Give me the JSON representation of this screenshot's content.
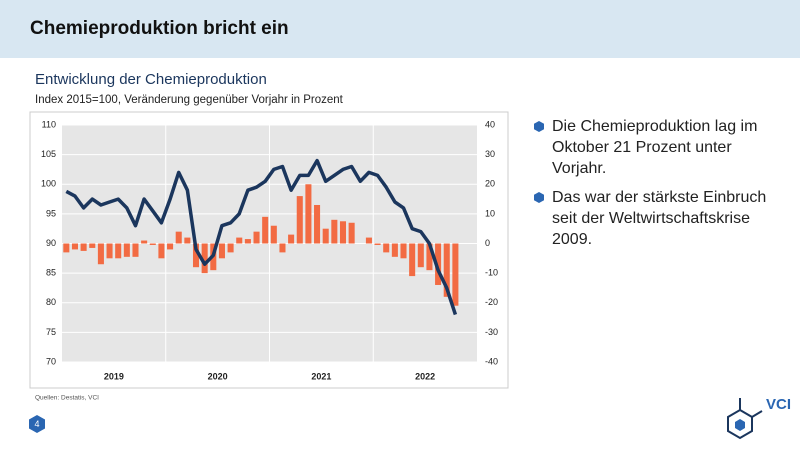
{
  "slide": {
    "title": "Chemieproduktion bricht ein",
    "bullets": [
      "Die Chemieproduktion lag im Oktober 21 Prozent unter Vorjahr.",
      "Das war der stärkste Einbruch seit der Weltwirtschaftskrise 2009."
    ],
    "source": "Quellen: Destatis, VCI",
    "page_number": "4",
    "logo": "VCI"
  },
  "chart_data": {
    "type": "bar-line",
    "title": "Entwicklung der Chemieproduktion",
    "subtitle": "Index 2015=100, Veränderung gegenüber Vorjahr in Prozent",
    "categories": [
      null,
      null,
      null,
      null,
      null,
      null,
      null,
      null,
      null,
      null,
      null,
      null,
      null,
      null,
      null,
      null,
      null,
      null,
      null,
      null,
      null,
      null,
      null,
      null,
      null,
      null,
      null,
      null,
      null,
      null,
      null,
      null,
      null,
      null,
      null,
      null,
      null,
      null,
      null,
      null,
      null,
      null,
      null,
      null,
      null,
      null
    ],
    "year_labels": [
      "2019",
      "2020",
      "2021",
      "2022"
    ],
    "series": [
      {
        "name": "Veränderung gegenüber Vorjahr",
        "type": "bar",
        "axis": "y2",
        "color": "#f26b43",
        "values": [
          -3,
          -2,
          -2.5,
          -1.5,
          -7,
          -5,
          -5,
          -4.5,
          -4.5,
          1,
          -0.5,
          -5,
          -2,
          4,
          2,
          -8,
          -10,
          -9,
          -5,
          -3,
          2,
          1.5,
          4,
          9,
          6,
          -3,
          3,
          16,
          20,
          13,
          5,
          8,
          7.5,
          7,
          0,
          2,
          -0.5,
          -3,
          -4.5,
          -5,
          -11,
          -8,
          -9,
          -14,
          -18,
          -21
        ]
      },
      {
        "name": "Index 2015=100",
        "type": "line",
        "color": "#1b365d",
        "values": [
          98.8,
          98,
          96,
          97.5,
          96.5,
          97,
          97.5,
          96,
          93,
          97.5,
          95.5,
          93.5,
          97.5,
          102,
          99,
          89,
          86.5,
          88,
          93,
          93.5,
          95,
          99,
          99.5,
          100.5,
          102.5,
          103,
          99,
          101.5,
          101.5,
          104,
          100.5,
          101.5,
          102.5,
          103,
          100.5,
          102,
          101.5,
          99.5,
          97,
          96,
          92.5,
          92,
          90,
          85.5,
          82.5,
          78
        ]
      }
    ],
    "ylim": [
      70,
      110
    ],
    "yticks": [
      70,
      75,
      80,
      85,
      90,
      95,
      100,
      105,
      110
    ],
    "y2lim": [
      -40,
      40
    ],
    "y2ticks": [
      -40,
      -30,
      -20,
      -10,
      0,
      10,
      20,
      30,
      40
    ],
    "grid": true
  }
}
